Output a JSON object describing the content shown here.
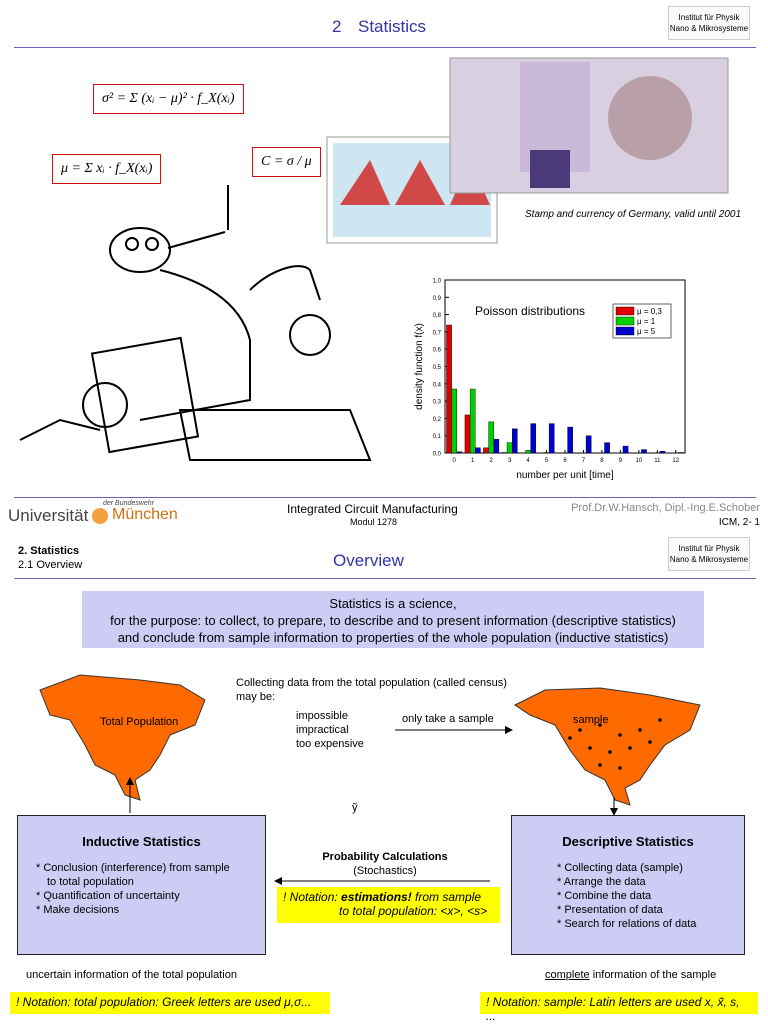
{
  "slide1": {
    "number": "2",
    "title": "Statistics",
    "logo": [
      "Institut für Physik",
      "Nano & Mikrosysteme"
    ],
    "formulas": [
      "σ² = Σ (xᵢ − μ)² · f_X(xᵢ)",
      "μ = Σ xᵢ · f_X(xᵢ)",
      "C = σ / μ"
    ],
    "caption": "Stamp and currency of Germany, valid until 2001",
    "chart_data": {
      "type": "bar",
      "title": "Poisson distributions",
      "x_label": "number per unit  [time]",
      "y_label": "density function f(x)",
      "categories": [
        "0",
        "1",
        "2",
        "3",
        "4",
        "5",
        "6",
        "7",
        "8",
        "9",
        "10",
        "11",
        "12"
      ],
      "series": [
        {
          "name": "μ = 0,3",
          "color": "#e00000",
          "values": [
            0.74,
            0.22,
            0.03,
            0.003,
            0,
            0,
            0,
            0,
            0,
            0,
            0,
            0,
            0
          ]
        },
        {
          "name": "μ = 1",
          "color": "#00d000",
          "values": [
            0.37,
            0.37,
            0.18,
            0.06,
            0.015,
            0.003,
            0,
            0,
            0,
            0,
            0,
            0,
            0
          ]
        },
        {
          "name": "μ = 5",
          "color": "#0000d0",
          "values": [
            0.007,
            0.03,
            0.08,
            0.14,
            0.17,
            0.17,
            0.15,
            0.1,
            0.06,
            0.04,
            0.02,
            0.01,
            0.003
          ]
        }
      ],
      "ylim": [
        0,
        1
      ],
      "yticks": [
        {
          "value": 0,
          "label": "0,0"
        },
        {
          "value": 0.1,
          "label": "0,1"
        },
        {
          "value": 0.2,
          "label": "0,2"
        },
        {
          "value": 0.3,
          "label": "0,3"
        },
        {
          "value": 0.4,
          "label": "0,4"
        },
        {
          "value": 0.5,
          "label": "0,5"
        },
        {
          "value": 0.6,
          "label": "0,6"
        },
        {
          "value": 0.7,
          "label": "0,7"
        },
        {
          "value": 0.8,
          "label": "0,8"
        },
        {
          "value": 0.9,
          "label": "0,9"
        },
        {
          "value": 1,
          "label": "1,0"
        }
      ],
      "legend": "upper right"
    }
  },
  "footer": {
    "university": "Universität",
    "university_sub": "der Bundeswehr",
    "city": "München",
    "course": "Integrated Circuit Manufacturing",
    "module": "Modul 1278",
    "authors": "Prof.Dr.W.Hansch, Dipl.-Ing.E.Schober",
    "page": "ICM, 2- 1"
  },
  "slide2": {
    "section": "2. Statistics",
    "subsection": "2.1 Overview",
    "title": "Overview",
    "logo": [
      "Institut für Physik",
      "Nano & Mikrosysteme"
    ],
    "definition": [
      "Statistics is a science,",
      "for the purpose: to collect, to prepare, to describe and to present information (descriptive statistics)",
      "and conclude from sample information to properties of the whole population (inductive statistics)"
    ],
    "census": [
      "Collecting data from the total population (called census)",
      "may be:"
    ],
    "reasons": [
      "impossible",
      "impractical",
      "too expensive"
    ],
    "arrow_label": "only take a sample",
    "map_left": "Total Population",
    "map_right": "sample",
    "symbol": "ỹ",
    "inductive": {
      "title": "Inductive Statistics",
      "items": [
        "* Conclusion (interference) from sample",
        "to total population",
        "* Quantification of uncertainty",
        "* Make decisions"
      ]
    },
    "descriptive": {
      "title": "Descriptive Statistics",
      "items": [
        "* Collecting data (sample)",
        "* Arrange the data",
        "* Combine the data",
        "* Presentation of data",
        "* Search for relations of data"
      ]
    },
    "probability": [
      "Probability Calculations",
      "(Stochastics)"
    ],
    "notation_mid": [
      "! Notation: ",
      "estimations!",
      " from sample",
      "to total population:  <x>, <s>"
    ],
    "left_note": "uncertain information of the total population",
    "right_note": [
      "complete",
      " information of the sample"
    ],
    "notation_left": "! Notation: total population: Greek letters are used  μ,σ...",
    "notation_right": "! Notation: sample: Latin letters are used x, x̃, s, ..."
  }
}
